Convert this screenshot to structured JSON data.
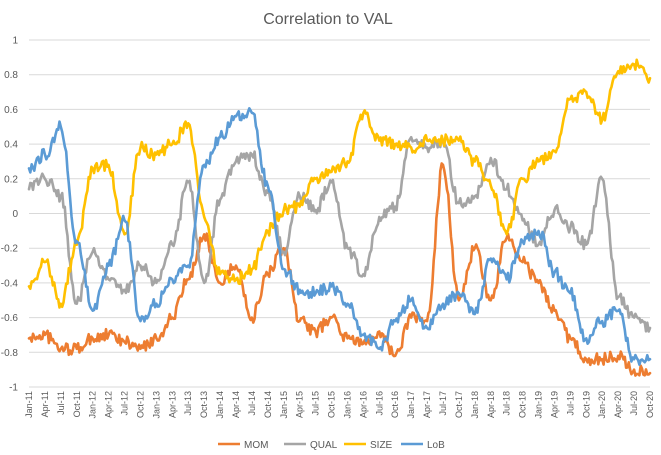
{
  "chart_data": {
    "type": "line",
    "title": "Correlation to VAL",
    "xlabel": "",
    "ylabel": "",
    "ylim": [
      -1,
      1
    ],
    "yticks": [
      "1",
      "0.8",
      "0.6",
      "0.4",
      "0.2",
      "0",
      "-0.2",
      "-0.4",
      "-0.6",
      "-0.8",
      "-1"
    ],
    "ytick_values": [
      1,
      0.8,
      0.6,
      0.4,
      0.2,
      0,
      -0.2,
      -0.4,
      -0.6,
      -0.8,
      -1
    ],
    "x": [
      "Jan-11",
      "Apr-11",
      "Jul-11",
      "Oct-11",
      "Jan-12",
      "Apr-12",
      "Jul-12",
      "Oct-12",
      "Jan-13",
      "Apr-13",
      "Jul-13",
      "Oct-13",
      "Jan-14",
      "Apr-14",
      "Jul-14",
      "Oct-14",
      "Jan-15",
      "Apr-15",
      "Jul-15",
      "Oct-15",
      "Jan-16",
      "Apr-16",
      "Jul-16",
      "Oct-16",
      "Jan-17",
      "Apr-17",
      "Jul-17",
      "Oct-17",
      "Jan-18",
      "Apr-18",
      "Jul-18",
      "Oct-18",
      "Jan-19",
      "Apr-19",
      "Jul-19",
      "Oct-19",
      "Jan-20",
      "Apr-20",
      "Jul-20",
      "Oct-20"
    ],
    "legend_position": "bottom",
    "grid": "horizontal",
    "series": [
      {
        "name": "MOM",
        "color": "#ED7D31",
        "values": [
          -0.72,
          -0.7,
          -0.78,
          -0.78,
          -0.72,
          -0.7,
          -0.74,
          -0.78,
          -0.72,
          -0.6,
          -0.38,
          -0.12,
          -0.4,
          -0.3,
          -0.6,
          -0.35,
          -0.2,
          -0.62,
          -0.68,
          -0.6,
          -0.72,
          -0.75,
          -0.68,
          -0.82,
          -0.6,
          -0.62,
          0.28,
          -0.5,
          -0.2,
          -0.5,
          -0.14,
          -0.28,
          -0.4,
          -0.56,
          -0.72,
          -0.84,
          -0.84,
          -0.82,
          -0.9,
          -0.92
        ]
      },
      {
        "name": "QUAL",
        "color": "#A5A5A5",
        "values": [
          0.14,
          0.2,
          0.1,
          -0.52,
          -0.22,
          -0.38,
          -0.44,
          -0.3,
          -0.4,
          -0.18,
          0.18,
          -0.4,
          0.08,
          0.3,
          0.34,
          0.12,
          -0.22,
          0.1,
          0.02,
          0.18,
          -0.2,
          -0.35,
          -0.02,
          0.04,
          0.44,
          0.38,
          0.42,
          0.06,
          0.1,
          0.32,
          0.14,
          -0.04,
          -0.18,
          0.02,
          -0.08,
          -0.18,
          0.2,
          -0.48,
          -0.6,
          -0.66
        ]
      },
      {
        "name": "SIZE",
        "color": "#FFC000",
        "values": [
          -0.42,
          -0.28,
          -0.52,
          -0.18,
          0.26,
          0.28,
          -0.12,
          0.38,
          0.34,
          0.4,
          0.52,
          -0.02,
          -0.35,
          -0.38,
          -0.32,
          -0.1,
          0.02,
          0.04,
          0.2,
          0.24,
          0.3,
          0.58,
          0.42,
          0.4,
          0.38,
          0.42,
          0.42,
          0.42,
          0.3,
          0.16,
          -0.12,
          0.2,
          0.3,
          0.36,
          0.66,
          0.7,
          0.54,
          0.82,
          0.86,
          0.78
        ]
      },
      {
        "name": "LoB",
        "color": "#5B9BD5",
        "values": [
          0.26,
          0.34,
          0.5,
          -0.16,
          -0.56,
          -0.3,
          -0.04,
          -0.62,
          -0.52,
          -0.38,
          -0.3,
          0.28,
          0.44,
          0.56,
          0.58,
          0.16,
          -0.32,
          -0.44,
          -0.46,
          -0.42,
          -0.52,
          -0.7,
          -0.78,
          -0.62,
          -0.5,
          -0.66,
          -0.52,
          -0.46,
          -0.58,
          -0.26,
          -0.38,
          -0.16,
          -0.1,
          -0.34,
          -0.46,
          -0.72,
          -0.62,
          -0.56,
          -0.84,
          -0.84
        ]
      }
    ]
  }
}
